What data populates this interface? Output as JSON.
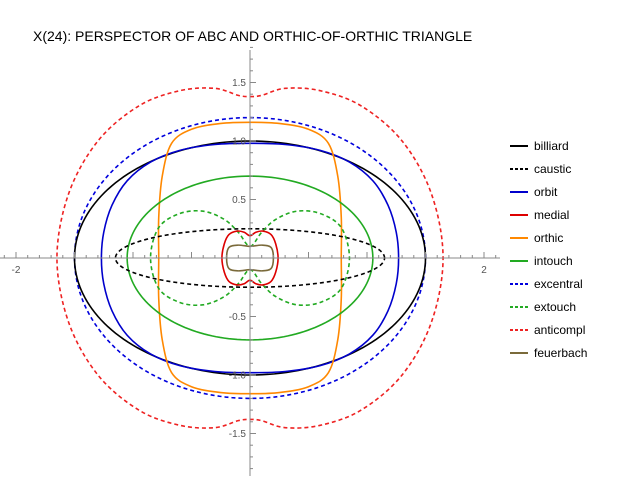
{
  "chart_data": {
    "type": "line",
    "title": "X(24): PERSPECTOR OF ABC AND ORTHIC-OF-ORTHIC TRIANGLE",
    "xlabel": "",
    "ylabel": "",
    "xlim": [
      -2.0,
      2.0
    ],
    "ylim": [
      -1.85,
      1.85
    ],
    "x_ticks": [
      {
        "value": -2,
        "label": "-2"
      },
      {
        "value": 2,
        "label": "2"
      }
    ],
    "y_ticks": [
      {
        "value": 1.5,
        "label": "1.5"
      },
      {
        "value": 1.0,
        "label": "1.0"
      },
      {
        "value": 0.5,
        "label": "0.5"
      },
      {
        "value": -0.5,
        "label": "-0.5"
      },
      {
        "value": -1.0,
        "label": "-1.0"
      },
      {
        "value": -1.5,
        "label": "-1.5"
      }
    ],
    "grid": false,
    "legend_position": "right",
    "series": [
      {
        "name": "billiard",
        "color": "#000000",
        "dash": "solid",
        "kind": "ellipse",
        "a": 1.5,
        "b": 1.0
      },
      {
        "name": "caustic",
        "color": "#000000",
        "dash": "dashed",
        "kind": "ellipse",
        "a": 1.15,
        "b": 0.25
      },
      {
        "name": "orbit",
        "color": "#0000cc",
        "dash": "solid",
        "points": [
          [
            0,
            0.98
          ],
          [
            0.3,
            0.97
          ],
          [
            0.6,
            0.92
          ],
          [
            0.85,
            0.82
          ],
          [
            1.05,
            0.66
          ],
          [
            1.18,
            0.45
          ],
          [
            1.25,
            0.22
          ],
          [
            1.27,
            0
          ],
          [
            1.25,
            -0.22
          ],
          [
            1.18,
            -0.45
          ],
          [
            1.05,
            -0.66
          ],
          [
            0.85,
            -0.82
          ],
          [
            0.6,
            -0.92
          ],
          [
            0.3,
            -0.97
          ],
          [
            0,
            -0.98
          ],
          [
            -0.3,
            -0.97
          ],
          [
            -0.6,
            -0.92
          ],
          [
            -0.85,
            -0.82
          ],
          [
            -1.05,
            -0.66
          ],
          [
            -1.18,
            -0.45
          ],
          [
            -1.25,
            -0.22
          ],
          [
            -1.27,
            0
          ],
          [
            -1.25,
            0.22
          ],
          [
            -1.18,
            0.45
          ],
          [
            -1.05,
            0.66
          ],
          [
            -0.85,
            0.82
          ],
          [
            -0.6,
            0.92
          ],
          [
            -0.3,
            0.97
          ],
          [
            0,
            0.98
          ]
        ]
      },
      {
        "name": "medial",
        "color": "#dd0000",
        "dash": "solid",
        "points": [
          [
            0,
            0.19
          ],
          [
            0.05,
            0.22
          ],
          [
            0.11,
            0.23
          ],
          [
            0.18,
            0.2
          ],
          [
            0.22,
            0.12
          ],
          [
            0.24,
            0
          ],
          [
            0.22,
            -0.12
          ],
          [
            0.18,
            -0.2
          ],
          [
            0.11,
            -0.23
          ],
          [
            0.05,
            -0.22
          ],
          [
            0,
            -0.19
          ],
          [
            -0.05,
            -0.22
          ],
          [
            -0.11,
            -0.23
          ],
          [
            -0.18,
            -0.2
          ],
          [
            -0.22,
            -0.12
          ],
          [
            -0.24,
            0
          ],
          [
            -0.22,
            0.12
          ],
          [
            -0.18,
            0.2
          ],
          [
            -0.11,
            0.23
          ],
          [
            -0.05,
            0.22
          ],
          [
            0,
            0.19
          ]
        ]
      },
      {
        "name": "orthic",
        "color": "#ff8800",
        "dash": "solid",
        "points": [
          [
            0,
            1.16
          ],
          [
            0.25,
            1.15
          ],
          [
            0.5,
            1.1
          ],
          [
            0.67,
            0.98
          ],
          [
            0.75,
            0.7
          ],
          [
            0.78,
            0.35
          ],
          [
            0.78,
            0
          ],
          [
            0.78,
            -0.35
          ],
          [
            0.75,
            -0.7
          ],
          [
            0.67,
            -0.98
          ],
          [
            0.5,
            -1.1
          ],
          [
            0.25,
            -1.15
          ],
          [
            0,
            -1.16
          ],
          [
            -0.25,
            -1.15
          ],
          [
            -0.5,
            -1.1
          ],
          [
            -0.67,
            -0.98
          ],
          [
            -0.75,
            -0.7
          ],
          [
            -0.78,
            -0.35
          ],
          [
            -0.78,
            0
          ],
          [
            -0.78,
            0.35
          ],
          [
            -0.75,
            0.7
          ],
          [
            -0.67,
            0.98
          ],
          [
            -0.5,
            1.1
          ],
          [
            -0.25,
            1.15
          ],
          [
            0,
            1.16
          ]
        ]
      },
      {
        "name": "intouch",
        "color": "#22aa22",
        "dash": "solid",
        "kind": "ellipse",
        "a": 1.05,
        "b": 0.7
      },
      {
        "name": "excentral",
        "color": "#0000dd",
        "dash": "dashed",
        "kind": "ellipse",
        "a": 1.5,
        "b": 1.2
      },
      {
        "name": "extouch",
        "color": "#22aa22",
        "dash": "dashed",
        "points": [
          [
            0,
            0.1
          ],
          [
            0.1,
            0.22
          ],
          [
            0.22,
            0.33
          ],
          [
            0.4,
            0.4
          ],
          [
            0.6,
            0.38
          ],
          [
            0.78,
            0.26
          ],
          [
            0.85,
            0
          ],
          [
            0.78,
            -0.26
          ],
          [
            0.6,
            -0.38
          ],
          [
            0.4,
            -0.4
          ],
          [
            0.22,
            -0.33
          ],
          [
            0.1,
            -0.22
          ],
          [
            0,
            -0.1
          ],
          [
            -0.1,
            -0.22
          ],
          [
            -0.22,
            -0.33
          ],
          [
            -0.4,
            -0.4
          ],
          [
            -0.6,
            -0.38
          ],
          [
            -0.78,
            -0.26
          ],
          [
            -0.85,
            0
          ],
          [
            -0.78,
            0.26
          ],
          [
            -0.6,
            0.38
          ],
          [
            -0.4,
            0.4
          ],
          [
            -0.22,
            0.33
          ],
          [
            -0.1,
            0.22
          ],
          [
            0,
            0.1
          ]
        ]
      },
      {
        "name": "anticompl",
        "color": "#ee2222",
        "dash": "dashed",
        "points": [
          [
            0,
            1.38
          ],
          [
            0.1,
            1.39
          ],
          [
            0.3,
            1.45
          ],
          [
            0.6,
            1.43
          ],
          [
            0.95,
            1.3
          ],
          [
            1.3,
            1.0
          ],
          [
            1.55,
            0.55
          ],
          [
            1.65,
            0
          ],
          [
            1.55,
            -0.55
          ],
          [
            1.3,
            -1.0
          ],
          [
            0.95,
            -1.3
          ],
          [
            0.6,
            -1.43
          ],
          [
            0.3,
            -1.45
          ],
          [
            0.1,
            -1.39
          ],
          [
            0,
            -1.38
          ],
          [
            -0.1,
            -1.39
          ],
          [
            -0.3,
            -1.45
          ],
          [
            -0.6,
            -1.43
          ],
          [
            -0.95,
            -1.3
          ],
          [
            -1.3,
            -1.0
          ],
          [
            -1.55,
            -0.55
          ],
          [
            -1.65,
            0
          ],
          [
            -1.55,
            0.55
          ],
          [
            -1.3,
            1.0
          ],
          [
            -0.95,
            1.3
          ],
          [
            -0.6,
            1.43
          ],
          [
            -0.3,
            1.45
          ],
          [
            -0.1,
            1.39
          ],
          [
            0,
            1.38
          ]
        ]
      },
      {
        "name": "feuerbach",
        "color": "#7a6a3a",
        "dash": "solid",
        "points": [
          [
            0,
            0.1
          ],
          [
            0.1,
            0.11
          ],
          [
            0.18,
            0.09
          ],
          [
            0.2,
            0
          ],
          [
            0.18,
            -0.09
          ],
          [
            0.1,
            -0.11
          ],
          [
            0,
            -0.1
          ],
          [
            -0.1,
            -0.11
          ],
          [
            -0.18,
            -0.09
          ],
          [
            -0.2,
            0
          ],
          [
            -0.18,
            0.09
          ],
          [
            -0.1,
            0.11
          ],
          [
            0,
            0.1
          ]
        ]
      }
    ]
  }
}
